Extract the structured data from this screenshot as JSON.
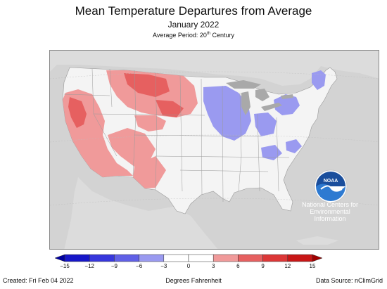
{
  "title": "Mean Temperature Departures from Average",
  "subtitle": "January 2022",
  "period": {
    "text": "Average Period: 20",
    "sup": "th",
    "suffix": " Century"
  },
  "logo": {
    "name": "NOAA",
    "org_lines": [
      "National Centers for",
      "Environmental",
      "Information"
    ]
  },
  "legend": {
    "unit_label": "Degrees Fahrenheit",
    "ticks": [
      "−15",
      "−12",
      "−9",
      "−6",
      "−3",
      "0",
      "3",
      "6",
      "9",
      "12",
      "15"
    ],
    "bins": [
      {
        "from": -15,
        "to": -12,
        "color": "#1717c8"
      },
      {
        "from": -12,
        "to": -9,
        "color": "#3737dc"
      },
      {
        "from": -9,
        "to": -6,
        "color": "#6060e6"
      },
      {
        "from": -6,
        "to": -3,
        "color": "#9a9af0"
      },
      {
        "from": -3,
        "to": 0,
        "color": "#ffffff"
      },
      {
        "from": 0,
        "to": 3,
        "color": "#ffffff"
      },
      {
        "from": 3,
        "to": 6,
        "color": "#f09a9a"
      },
      {
        "from": 6,
        "to": 9,
        "color": "#e66060"
      },
      {
        "from": 9,
        "to": 12,
        "color": "#dc3737"
      },
      {
        "from": 12,
        "to": 15,
        "color": "#c81717"
      }
    ],
    "under_color": "#0000a0",
    "over_color": "#a00000"
  },
  "footer": {
    "created": "Created: Fri Feb 04 2022",
    "source": "Data Source: nClimGrid"
  },
  "map_colors": {
    "ocean": "#d3d3d3",
    "land_neutral": "#f4f4f4",
    "neighbor_land": "#dcdcdc",
    "lakes": "#a9a9a9",
    "warm_light": "#f09a9a",
    "warm_mid": "#e66060",
    "cool_light": "#9a9af0"
  }
}
